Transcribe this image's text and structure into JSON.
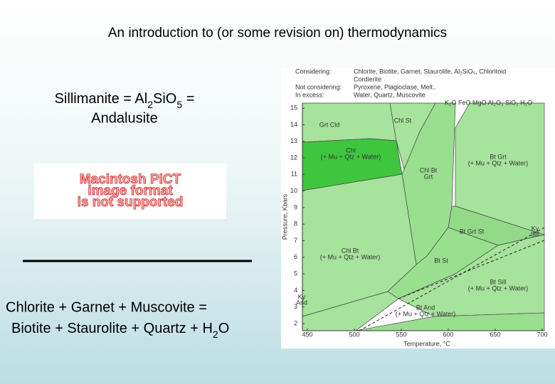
{
  "title": "An introduction to (or some revision on) thermodynamics",
  "sillimanite": {
    "line1": [
      "Sillimanite = Al",
      "2",
      "SiO",
      "5",
      " ="
    ],
    "line2": "Andalusite"
  },
  "pict_placeholder": [
    "Macintosh PICT",
    "image format",
    "is not supported"
  ],
  "reaction": {
    "line1": "Chlorite + Garnet + Muscovite =",
    "line2": [
      "Biotite + Staurolite + Quartz + H",
      "2",
      "O"
    ]
  },
  "diagram": {
    "header": [
      {
        "label": "Considering:",
        "items": [
          "Chlorite, Biotite, Garnet, Staurolite, Al₂SiO₅, Chloritoid",
          "Cordierite"
        ]
      },
      {
        "label": "Not considering:",
        "items": [
          "Pyroxene, Plagioclase, Melt.."
        ]
      },
      {
        "label": "In excess:",
        "items": [
          "Water, Quartz, Muscovite"
        ]
      }
    ],
    "components": "K₂O FeO MgO Al₂O₃ SiO₂ H₂O",
    "ylabel": "Pressure, Kbars",
    "xlabel": "Temperature, °C",
    "yticks": [
      2,
      3,
      4,
      5,
      6,
      7,
      8,
      9,
      10,
      11,
      12,
      13,
      14,
      15
    ],
    "xticks": [
      450,
      500,
      550,
      600,
      650,
      700
    ],
    "fields": [
      {
        "lines": [
          "Grt Cld"
        ]
      },
      {
        "lines": [
          "Chl St"
        ]
      },
      {
        "lines": [
          "Chl",
          "(+ Mu + Qtz + Water)"
        ]
      },
      {
        "lines": [
          "Chl Bt",
          "Grt"
        ]
      },
      {
        "lines": [
          "Bt Grt",
          "(+ Mu + Qtz + Water)"
        ]
      },
      {
        "lines": [
          "Bt Grt St"
        ]
      },
      {
        "lines": [
          "Chl Bt",
          "(+ Mu + Qtz + Water)"
        ]
      },
      {
        "lines": [
          "Bt St"
        ]
      },
      {
        "lines": [
          "Bt Sill",
          "(+ Mu + Qtz + Water)"
        ]
      },
      {
        "lines": [
          "Bt And",
          "(+ Mu + Qtz + Water)"
        ]
      }
    ],
    "boundaries": [
      {
        "lines": [
          "Ky",
          "Sill"
        ]
      },
      {
        "lines": [
          "Ky",
          "And"
        ]
      }
    ]
  }
}
